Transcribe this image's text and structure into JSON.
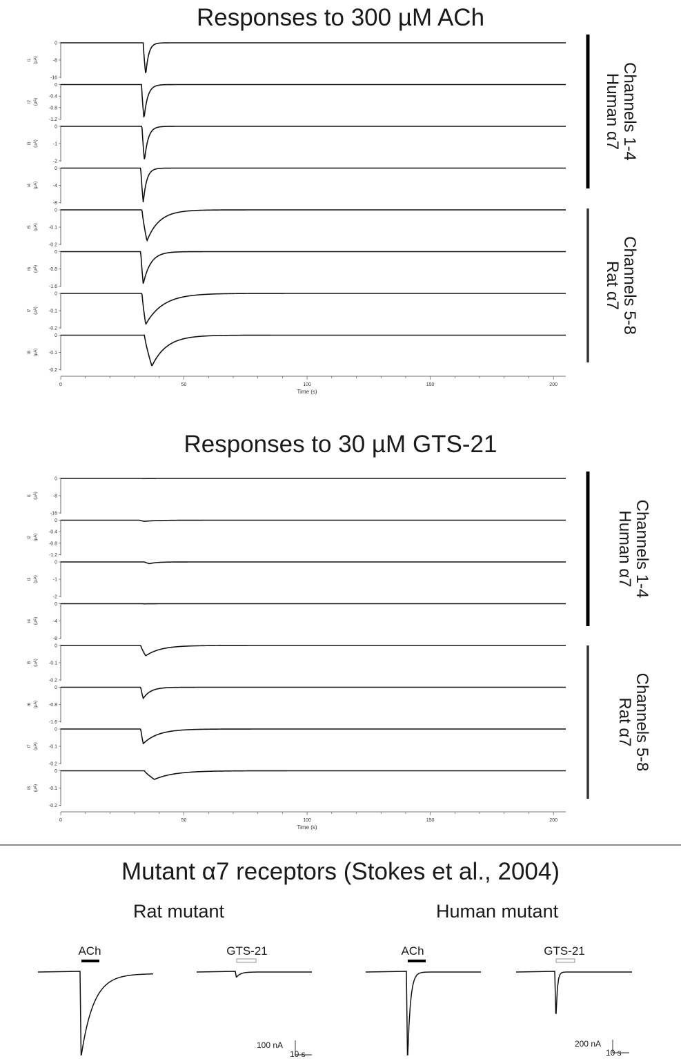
{
  "chart_data": [
    {
      "type": "line",
      "title": "Responses to 300 µM ACh",
      "xlabel": "Time (s)",
      "xlim": [
        0,
        205
      ],
      "x_ticks": [
        "0",
        "50",
        "100",
        "150",
        "200"
      ],
      "channels": [
        {
          "name": "I1",
          "unit": "(µA)",
          "ticks": [
            "0",
            "-8",
            "-16"
          ],
          "ylim": [
            -16,
            0
          ],
          "onset": 33.5,
          "peak_time": 34.5,
          "peak": -15,
          "tau": 1.2
        },
        {
          "name": "I2",
          "unit": "(µA)",
          "ticks": [
            "0",
            "-0.4",
            "-0.8",
            "-1.2"
          ],
          "ylim": [
            -1.2,
            0
          ],
          "onset": 32.8,
          "peak_time": 33.8,
          "peak": -1.2,
          "tau": 1.5
        },
        {
          "name": "I3",
          "unit": "(µA)",
          "ticks": [
            "0",
            "-1",
            "-2"
          ],
          "ylim": [
            -2,
            0
          ],
          "onset": 33,
          "peak_time": 34,
          "peak": -2,
          "tau": 1.5
        },
        {
          "name": "I4",
          "unit": "(µA)",
          "ticks": [
            "0",
            "-4",
            "-8"
          ],
          "ylim": [
            -8,
            0
          ],
          "onset": 32.5,
          "peak_time": 33.5,
          "peak": -8,
          "tau": 1.4
        },
        {
          "name": "I5",
          "unit": "(µA)",
          "ticks": [
            "0",
            "-0.1",
            "-0.2"
          ],
          "ylim": [
            -0.2,
            0
          ],
          "onset": 33,
          "peak_time": 35,
          "peak": -0.18,
          "tau": 5
        },
        {
          "name": "I6",
          "unit": "(µA)",
          "ticks": [
            "0",
            "-0.8",
            "-1.6"
          ],
          "ylim": [
            -1.6,
            0
          ],
          "onset": 32.5,
          "peak_time": 33.5,
          "peak": -1.5,
          "tau": 3
        },
        {
          "name": "I7",
          "unit": "(µA)",
          "ticks": [
            "0",
            "-0.1",
            "-0.2"
          ],
          "ylim": [
            -0.2,
            0
          ],
          "onset": 33,
          "peak_time": 34.5,
          "peak": -0.18,
          "tau": 7
        },
        {
          "name": "I8",
          "unit": "(µA)",
          "ticks": [
            "0",
            "-0.1",
            "-0.2"
          ],
          "ylim": [
            -0.2,
            0
          ],
          "onset": 34,
          "peak_time": 37,
          "peak": -0.18,
          "tau": 6
        }
      ],
      "groups": [
        {
          "label": "Channels 1-4",
          "sublabel": "Human α7"
        },
        {
          "label": "Channels 5-8",
          "sublabel": "Rat α7"
        }
      ]
    },
    {
      "type": "line",
      "title": "Responses to 30 µM GTS-21",
      "xlabel": "Time (s)",
      "xlim": [
        0,
        205
      ],
      "x_ticks": [
        "0",
        "50",
        "100",
        "150",
        "200"
      ],
      "channels": [
        {
          "name": "I1",
          "unit": "(µA)",
          "ticks": [
            "0",
            "-8",
            "-16"
          ],
          "ylim": [
            -16,
            0
          ],
          "onset": 33,
          "peak_time": 34,
          "peak": -0.05,
          "tau": 2
        },
        {
          "name": "I2",
          "unit": "(µA)",
          "ticks": [
            "0",
            "-0.4",
            "-0.8",
            "-1.2"
          ],
          "ylim": [
            -1.2,
            0
          ],
          "onset": 32,
          "peak_time": 34,
          "peak": -0.04,
          "tau": 5
        },
        {
          "name": "I3",
          "unit": "(µA)",
          "ticks": [
            "0",
            "-1",
            "-2"
          ],
          "ylim": [
            -2,
            0
          ],
          "onset": 34,
          "peak_time": 36,
          "peak": -0.1,
          "tau": 3
        },
        {
          "name": "I4",
          "unit": "(µA)",
          "ticks": [
            "0",
            "-4",
            "-8"
          ],
          "ylim": [
            -8,
            0
          ],
          "onset": 33,
          "peak_time": 34,
          "peak": -0.03,
          "tau": 2
        },
        {
          "name": "I5",
          "unit": "(µA)",
          "ticks": [
            "0",
            "-0.1",
            "-0.2"
          ],
          "ylim": [
            -0.2,
            0
          ],
          "onset": 32.5,
          "peak_time": 34.5,
          "peak": -0.06,
          "tau": 6
        },
        {
          "name": "I6",
          "unit": "(µA)",
          "ticks": [
            "0",
            "-0.8",
            "-1.6"
          ],
          "ylim": [
            -1.6,
            0
          ],
          "onset": 32.5,
          "peak_time": 33.5,
          "peak": -0.52,
          "tau": 3
        },
        {
          "name": "I7",
          "unit": "(µA)",
          "ticks": [
            "0",
            "-0.1",
            "-0.2"
          ],
          "ylim": [
            -0.2,
            0
          ],
          "onset": 32.5,
          "peak_time": 33.5,
          "peak": -0.085,
          "tau": 6
        },
        {
          "name": "I8",
          "unit": "(µA)",
          "ticks": [
            "0",
            "-0.1",
            "-0.2"
          ],
          "ylim": [
            -0.2,
            0
          ],
          "onset": 34,
          "peak_time": 38,
          "peak": -0.05,
          "tau": 8
        }
      ],
      "groups": [
        {
          "label": "Channels 1-4",
          "sublabel": "Human α7"
        },
        {
          "label": "Channels 5-8",
          "sublabel": "Rat α7"
        }
      ]
    }
  ],
  "mutant_panel": {
    "title": "Mutant α7 receptors (Stokes et al., 2004)",
    "columns": [
      {
        "label": "Rat mutant",
        "traces": [
          {
            "stimulus": "ACh",
            "stim_style": "filled",
            "peak_fraction": 1.0,
            "plateau_fraction": 0.02
          },
          {
            "stimulus": "GTS-21",
            "stim_style": "open",
            "peak_fraction": 0.06,
            "plateau_fraction": 0.0
          }
        ],
        "scalebar": {
          "amplitude": "100 nA",
          "time": "10 s"
        }
      },
      {
        "label": "Human mutant",
        "traces": [
          {
            "stimulus": "ACh",
            "stim_style": "filled",
            "peak_fraction": 1.0,
            "plateau_fraction": 0.0
          },
          {
            "stimulus": "GTS-21",
            "stim_style": "open",
            "peak_fraction": 0.5,
            "plateau_fraction": 0.0
          }
        ],
        "scalebar": {
          "amplitude": "200 nA",
          "time": "10 s"
        }
      }
    ]
  }
}
